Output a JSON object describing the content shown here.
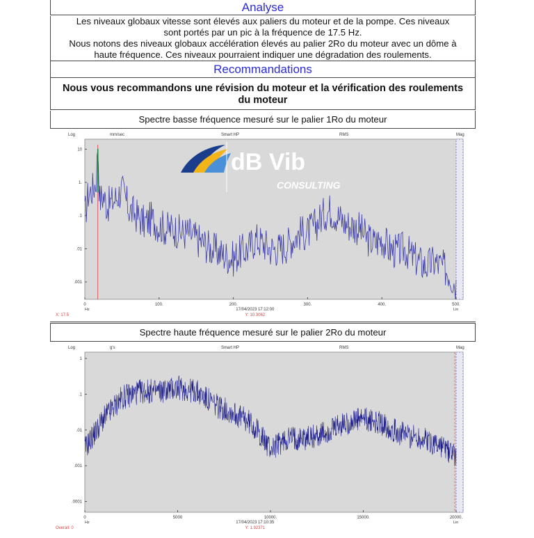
{
  "analysis": {
    "heading": "Analyse",
    "lines": [
      "Les niveaux globaux vitesse sont élevés aux paliers du moteur et de la pompe. Ces niveaux",
      "sont portés par un pic à la fréquence de 17.5 Hz.",
      "Nous notons des niveaux globaux accélération élevés au palier 2Ro du moteur avec un dôme à",
      "haute fréquence. Ces niveaux pourraient indiquer une dégradation des roulements."
    ]
  },
  "recommendations": {
    "heading": "Recommandations",
    "lines": [
      "Nous vous recommandons une révision du moteur et la vérification des roulements",
      "du moteur"
    ]
  },
  "logo": {
    "name": "dB Vib",
    "tagline": "CONSULTING"
  },
  "colors": {
    "heading": "#2b2bd8",
    "trace_low": "#3a3aa8",
    "trace_high": "#1c1c8c",
    "cursor": "#e04040",
    "plot_bg": "#d9d9d9"
  },
  "charts": [
    {
      "caption": "Spectre basse fréquence mesuré sur le palier 1Ro du moteur",
      "header": {
        "left": "Log",
        "unit": "mm/sec",
        "mid": "Smart HP",
        "mode": "RMS",
        "right": "Mag"
      },
      "xunit": "Hz",
      "xscale": "Lin",
      "date": "17/04/2023 17:12:00",
      "cursor_x_label": "X: 17.5",
      "cursor_y_label": "Y: 10.3062"
    },
    {
      "caption": "Spectre haute fréquence mesuré sur le palier 2Ro du moteur",
      "header": {
        "left": "Log",
        "unit": "g's",
        "mid": "Smart HP",
        "mode": "RMS",
        "right": "Mag"
      },
      "xunit": "Hz",
      "xscale": "Lin",
      "date": "17/04/2023 17:10:35",
      "cursor_x_label": "Overall: 0",
      "cursor_y_label": "Y: 1.92371"
    }
  ],
  "chart_data": [
    {
      "type": "line",
      "title": "Spectre basse fréquence mesuré sur le palier 1Ro du moteur",
      "xlabel": "Hz",
      "ylabel": "mm/sec",
      "yscale": "log",
      "xlim": [
        0,
        500
      ],
      "ylim": [
        0.0003,
        20
      ],
      "xticks": [
        "0",
        "100.",
        "200.",
        "300.",
        "400.",
        "500."
      ],
      "yticks": [
        "10",
        "1.",
        ".1",
        ".01",
        ".001"
      ],
      "ytick_values": [
        10,
        1,
        0.1,
        0.01,
        0.001
      ],
      "xtick_values": [
        0,
        100,
        200,
        300,
        400,
        500
      ],
      "cursor_x": 17.5,
      "peak": {
        "x": 17.5,
        "y": 10.3
      },
      "series": [
        {
          "x": [
            0,
            5,
            10,
            15,
            17.5,
            20,
            25,
            30,
            40,
            50,
            60,
            70,
            80,
            90,
            100,
            110,
            120,
            130,
            140,
            150,
            160,
            170,
            180,
            190,
            200,
            210,
            220,
            230,
            240,
            250,
            260,
            270,
            280,
            290,
            300,
            310,
            320,
            330,
            340,
            350,
            360,
            370,
            380,
            390,
            400,
            410,
            420,
            430,
            440,
            450,
            460,
            470,
            480,
            490,
            500
          ],
          "values": [
            0.1,
            0.5,
            0.6,
            1.0,
            10.3,
            0.3,
            0.4,
            0.2,
            0.3,
            0.6,
            0.15,
            0.1,
            0.06,
            0.08,
            0.05,
            0.04,
            0.04,
            0.03,
            0.03,
            0.02,
            0.015,
            0.01,
            0.008,
            0.006,
            0.005,
            0.008,
            0.01,
            0.02,
            0.015,
            0.01,
            0.01,
            0.012,
            0.02,
            0.03,
            0.03,
            0.05,
            0.1,
            0.15,
            0.1,
            0.06,
            0.05,
            0.04,
            0.02,
            0.015,
            0.02,
            0.01,
            0.008,
            0.01,
            0.006,
            0.004,
            0.003,
            0.004,
            0.003,
            0.002,
            0.0008
          ]
        }
      ]
    },
    {
      "type": "line",
      "title": "Spectre haute fréquence mesuré sur le palier 2Ro du moteur",
      "xlabel": "Hz",
      "ylabel": "g's",
      "yscale": "log",
      "xlim": [
        0,
        20000
      ],
      "ylim": [
        5e-05,
        1.5
      ],
      "xticks": [
        "0",
        "5000",
        "10000.",
        "15000.",
        "20000."
      ],
      "xtick_values": [
        0,
        5000,
        10000,
        15000,
        20000
      ],
      "yticks": [
        "1",
        ".1",
        ".01",
        ".001",
        ".0001"
      ],
      "ytick_values": [
        1,
        0.1,
        0.01,
        0.001,
        0.0001
      ],
      "series": [
        {
          "x": [
            0,
            1000,
            2000,
            3000,
            4000,
            5000,
            6000,
            7000,
            8000,
            9000,
            10000,
            11000,
            12000,
            13000,
            14000,
            15000,
            16000,
            17000,
            18000,
            19000,
            20000
          ],
          "values": [
            0.003,
            0.02,
            0.08,
            0.12,
            0.12,
            0.15,
            0.12,
            0.05,
            0.03,
            0.015,
            0.003,
            0.006,
            0.006,
            0.008,
            0.015,
            0.02,
            0.015,
            0.008,
            0.006,
            0.004,
            0.002
          ]
        }
      ]
    }
  ]
}
